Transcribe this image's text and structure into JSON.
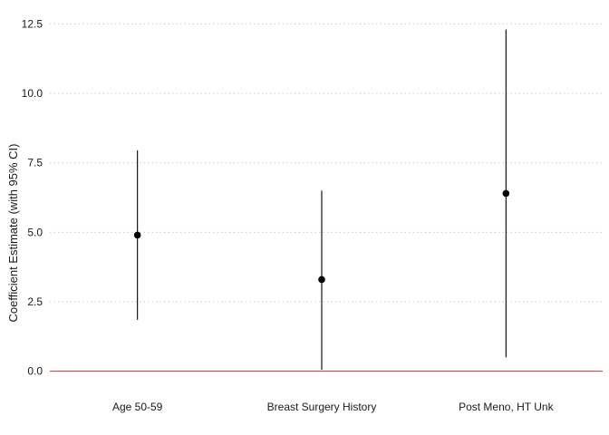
{
  "chart_data": {
    "type": "scatter",
    "subtype": "point-range (coefficient estimates with 95% CI)",
    "title": "",
    "xlabel": "",
    "ylabel": "Coefficient Estimate (with 95% CI)",
    "categories": [
      "Age 50-59",
      "Breast Surgery History",
      "Post Meno, HT Unk"
    ],
    "series": [
      {
        "estimate": [
          4.9,
          3.3,
          6.4
        ],
        "ci_lower": [
          1.85,
          0.05,
          0.5
        ],
        "ci_upper": [
          7.95,
          6.5,
          12.3
        ]
      }
    ],
    "yticks": [
      "0.0",
      "2.5",
      "5.0",
      "7.5",
      "10.0",
      "12.5"
    ],
    "ylim": [
      -0.6,
      13.1
    ],
    "reference_line": {
      "y": 0,
      "color": "#cc3333"
    },
    "grid": "horizontal dotted major gridlines",
    "point_color": "#000000",
    "gridline_color": "#cccccc",
    "legend": "none"
  }
}
